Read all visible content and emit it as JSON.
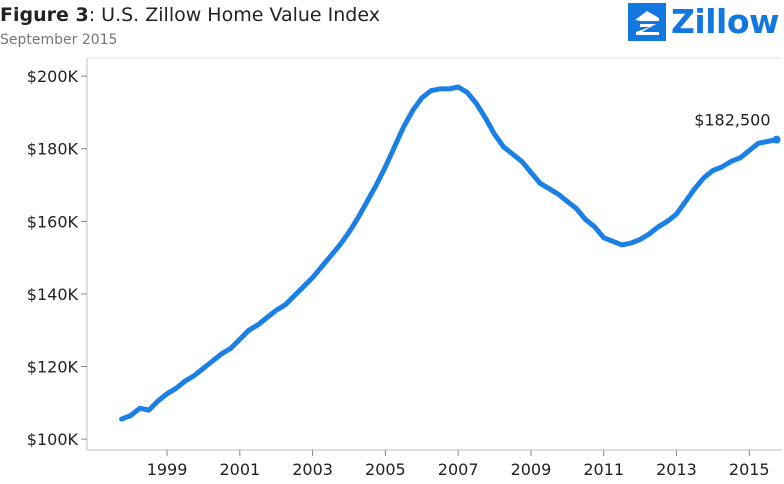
{
  "header": {
    "figure_label": "Figure 3",
    "title_rest": ": U.S. Zillow Home Value Index",
    "subtitle": "September 2015"
  },
  "logo": {
    "text": "Zillow",
    "icon": "zillow-house-icon",
    "color": "#1277e1"
  },
  "chart_data": {
    "type": "line",
    "title": "Figure 3: U.S. Zillow Home Value Index",
    "subtitle": "September 2015",
    "xlabel": "",
    "ylabel": "",
    "xlim": [
      1996.8,
      2015.9
    ],
    "ylim": [
      97000,
      205000
    ],
    "x_ticks": [
      1999,
      2001,
      2003,
      2005,
      2007,
      2009,
      2011,
      2013,
      2015
    ],
    "x_tick_labels": [
      "1999",
      "2001",
      "2003",
      "2005",
      "2007",
      "2009",
      "2011",
      "2013",
      "2015"
    ],
    "y_ticks": [
      100000,
      120000,
      140000,
      160000,
      180000,
      200000
    ],
    "y_tick_labels": [
      "$100K",
      "$120K",
      "$140K",
      "$160K",
      "$180K",
      "$200K"
    ],
    "grid": false,
    "line_color": "#1a80e6",
    "end_label": "$182,500",
    "series": [
      {
        "x": [
          1997.75,
          1998.0,
          1998.25,
          1998.5,
          1998.75,
          1999.0,
          1999.25,
          1999.5,
          1999.75,
          2000.0,
          2000.25,
          2000.5,
          2000.75,
          2001.0,
          2001.25,
          2001.5,
          2001.75,
          2002.0,
          2002.25,
          2002.5,
          2002.75,
          2003.0,
          2003.25,
          2003.5,
          2003.75,
          2004.0,
          2004.25,
          2004.5,
          2004.75,
          2005.0,
          2005.25,
          2005.5,
          2005.75,
          2006.0,
          2006.25,
          2006.5,
          2006.75,
          2007.0,
          2007.25,
          2007.5,
          2007.75,
          2008.0,
          2008.25,
          2008.5,
          2008.75,
          2009.0,
          2009.25,
          2009.5,
          2009.75,
          2010.0,
          2010.25,
          2010.5,
          2010.75,
          2011.0,
          2011.25,
          2011.5,
          2011.75,
          2012.0,
          2012.25,
          2012.5,
          2012.75,
          2013.0,
          2013.25,
          2013.5,
          2013.75,
          2014.0,
          2014.25,
          2014.5,
          2014.75,
          2015.0,
          2015.25,
          2015.5,
          2015.75
        ],
        "values": [
          105500,
          106500,
          108500,
          108000,
          110500,
          112500,
          114000,
          116000,
          117500,
          119500,
          121500,
          123500,
          125000,
          127500,
          130000,
          131500,
          133500,
          135500,
          137000,
          139500,
          142000,
          144500,
          147500,
          150500,
          153500,
          157000,
          161000,
          165500,
          170000,
          175000,
          180500,
          186000,
          190500,
          194000,
          196000,
          196500,
          196500,
          197000,
          195500,
          192500,
          188500,
          184000,
          180500,
          178500,
          176500,
          173500,
          170500,
          169000,
          167500,
          165500,
          163500,
          160500,
          158500,
          155500,
          154500,
          153500,
          154000,
          155000,
          156500,
          158500,
          160000,
          162000,
          165500,
          169000,
          172000,
          174000,
          175000,
          176500,
          177500,
          179500,
          181500,
          182000,
          182500
        ]
      }
    ]
  }
}
